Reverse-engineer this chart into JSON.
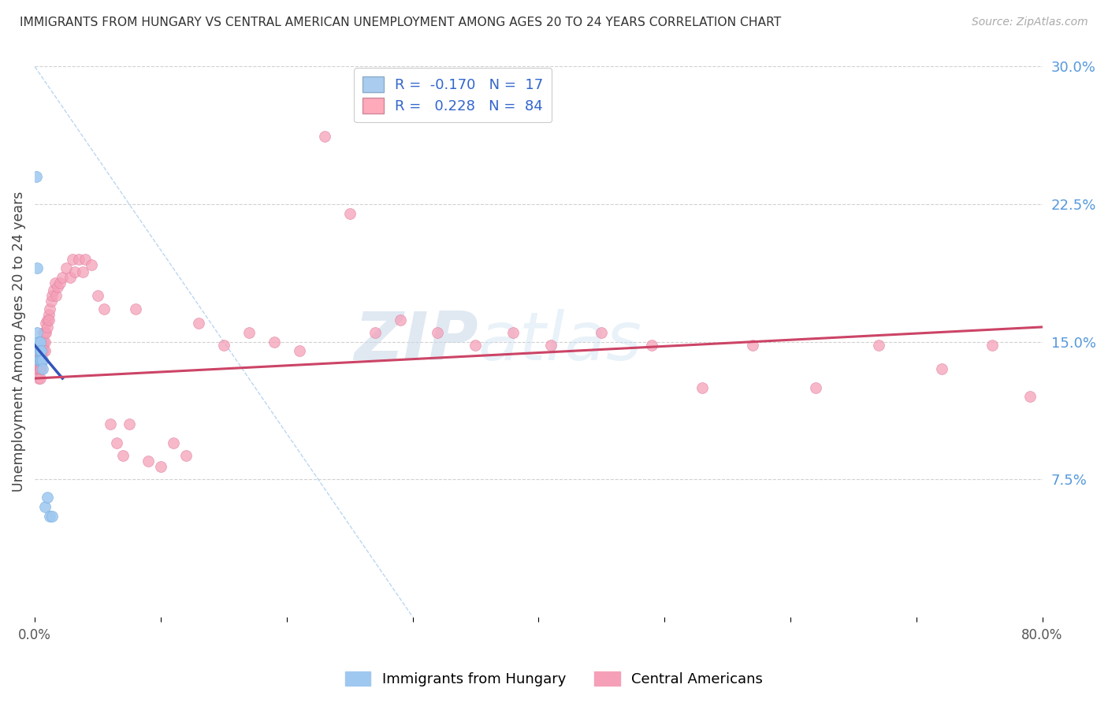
{
  "title": "IMMIGRANTS FROM HUNGARY VS CENTRAL AMERICAN UNEMPLOYMENT AMONG AGES 20 TO 24 YEARS CORRELATION CHART",
  "source": "Source: ZipAtlas.com",
  "ylabel": "Unemployment Among Ages 20 to 24 years",
  "xlim": [
    0.0,
    0.8
  ],
  "ylim": [
    0.0,
    0.3
  ],
  "xticks": [
    0.0,
    0.1,
    0.2,
    0.3,
    0.4,
    0.5,
    0.6,
    0.7,
    0.8
  ],
  "yticks_right": [
    0.075,
    0.15,
    0.225,
    0.3
  ],
  "ytick_labels_right": [
    "7.5%",
    "15.0%",
    "22.5%",
    "30.0%"
  ],
  "legend_entries": [
    {
      "label": "R =  -0.170   N =  17",
      "color": "#aaccee"
    },
    {
      "label": "R =   0.228   N =  84",
      "color": "#ffaabb"
    }
  ],
  "hungary_dots_x": [
    0.001,
    0.002,
    0.002,
    0.003,
    0.003,
    0.003,
    0.004,
    0.004,
    0.004,
    0.005,
    0.005,
    0.006,
    0.006,
    0.008,
    0.01,
    0.012,
    0.014
  ],
  "hungary_dots_y": [
    0.24,
    0.19,
    0.155,
    0.15,
    0.145,
    0.14,
    0.15,
    0.145,
    0.14,
    0.145,
    0.14,
    0.14,
    0.135,
    0.06,
    0.065,
    0.055,
    0.055
  ],
  "central_dots_x": [
    0.001,
    0.001,
    0.002,
    0.002,
    0.002,
    0.003,
    0.003,
    0.003,
    0.003,
    0.004,
    0.004,
    0.004,
    0.004,
    0.004,
    0.005,
    0.005,
    0.005,
    0.005,
    0.005,
    0.006,
    0.006,
    0.006,
    0.007,
    0.007,
    0.007,
    0.008,
    0.008,
    0.008,
    0.009,
    0.009,
    0.01,
    0.01,
    0.011,
    0.011,
    0.012,
    0.013,
    0.014,
    0.015,
    0.016,
    0.017,
    0.018,
    0.02,
    0.022,
    0.025,
    0.028,
    0.03,
    0.032,
    0.035,
    0.038,
    0.04,
    0.045,
    0.05,
    0.055,
    0.06,
    0.065,
    0.07,
    0.075,
    0.08,
    0.09,
    0.1,
    0.11,
    0.12,
    0.13,
    0.15,
    0.17,
    0.19,
    0.21,
    0.23,
    0.25,
    0.27,
    0.29,
    0.32,
    0.35,
    0.38,
    0.41,
    0.45,
    0.49,
    0.53,
    0.57,
    0.62,
    0.67,
    0.72,
    0.76,
    0.79
  ],
  "central_dots_y": [
    0.14,
    0.135,
    0.145,
    0.14,
    0.135,
    0.145,
    0.14,
    0.135,
    0.13,
    0.148,
    0.142,
    0.138,
    0.135,
    0.13,
    0.148,
    0.145,
    0.142,
    0.138,
    0.135,
    0.15,
    0.148,
    0.145,
    0.155,
    0.15,
    0.145,
    0.155,
    0.15,
    0.145,
    0.16,
    0.155,
    0.162,
    0.158,
    0.165,
    0.162,
    0.168,
    0.172,
    0.175,
    0.178,
    0.182,
    0.175,
    0.18,
    0.182,
    0.185,
    0.19,
    0.185,
    0.195,
    0.188,
    0.195,
    0.188,
    0.195,
    0.192,
    0.175,
    0.168,
    0.105,
    0.095,
    0.088,
    0.105,
    0.168,
    0.085,
    0.082,
    0.095,
    0.088,
    0.16,
    0.148,
    0.155,
    0.15,
    0.145,
    0.262,
    0.22,
    0.155,
    0.162,
    0.155,
    0.148,
    0.155,
    0.148,
    0.155,
    0.148,
    0.125,
    0.148,
    0.125,
    0.148,
    0.135,
    0.148,
    0.12
  ],
  "hungary_line": {
    "x0": 0.0,
    "x1": 0.022,
    "y0": 0.148,
    "y1": 0.13
  },
  "central_line": {
    "x0": 0.0,
    "x1": 0.8,
    "y0": 0.13,
    "y1": 0.158
  },
  "diag_line": {
    "x0": 0.0,
    "x1": 0.3,
    "y0": 0.3,
    "y1": 0.0
  },
  "dot_size": 100,
  "hungary_dot_color": "#9ec8f0",
  "hungary_dot_edge": "#7ab0e0",
  "central_dot_color": "#f5a0b8",
  "central_dot_edge": "#e080a0",
  "hungary_line_color": "#3355bb",
  "central_line_color": "#cc4466",
  "diag_line_color": "#aaccee",
  "watermark_zip": "ZIP",
  "watermark_atlas": "atlas",
  "background_color": "#ffffff",
  "grid_color": "#cccccc"
}
